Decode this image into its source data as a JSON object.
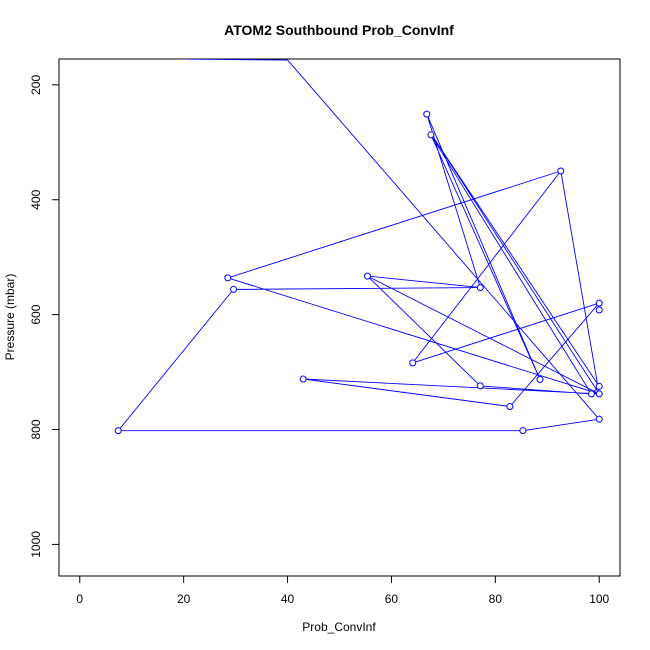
{
  "chart_data": {
    "type": "line",
    "title": "ATOM2 Southbound Prob_ConvInf",
    "xlabel": "Prob_ConvInf",
    "ylabel": "Pressure (mbar)",
    "xlim": [
      -4,
      104
    ],
    "ylim": [
      1055,
      155
    ],
    "y_reversed": true,
    "x_ticks": [
      0,
      20,
      40,
      60,
      80,
      100
    ],
    "y_ticks": [
      200,
      400,
      600,
      800,
      1000
    ],
    "x_tick_labels": [
      "0",
      "20",
      "40",
      "60",
      "80",
      "100"
    ],
    "y_tick_labels": [
      "200",
      "400",
      "600",
      "800",
      "1000"
    ],
    "grid": false,
    "line_color": "#0000ff",
    "series": [
      {
        "points": [
          [
            19.7,
            155
          ],
          [
            40,
            157
          ],
          [
            100,
            782
          ],
          [
            100,
            782
          ],
          [
            85.3,
            802
          ],
          [
            7.4,
            802
          ],
          [
            29.6,
            556
          ],
          [
            77.1,
            553
          ],
          [
            55.4,
            533
          ],
          [
            100,
            738
          ],
          [
            92.6,
            350
          ],
          [
            64.1,
            684
          ],
          [
            100,
            580
          ],
          [
            82.8,
            760
          ],
          [
            43,
            712
          ],
          [
            100,
            738
          ],
          [
            98.5,
            738
          ],
          [
            67.6,
            287
          ],
          [
            88.6,
            713
          ],
          [
            66.8,
            251
          ],
          [
            77.1,
            553
          ],
          [
            55.4,
            533
          ],
          [
            77.1,
            724
          ],
          [
            98.5,
            738
          ],
          [
            100,
            725
          ],
          [
            68.4,
            296
          ],
          [
            100,
            738
          ],
          [
            28.5,
            536
          ],
          [
            92.6,
            350
          ]
        ],
        "markers": [
          [
            66.8,
            251
          ],
          [
            67.6,
            287
          ],
          [
            92.6,
            350
          ],
          [
            28.5,
            536
          ],
          [
            55.4,
            533
          ],
          [
            29.6,
            556
          ],
          [
            77.1,
            553
          ],
          [
            100,
            580
          ],
          [
            100,
            592
          ],
          [
            64.1,
            684
          ],
          [
            43,
            712
          ],
          [
            88.6,
            713
          ],
          [
            77.1,
            724
          ],
          [
            100,
            725
          ],
          [
            98.5,
            738
          ],
          [
            100,
            738
          ],
          [
            82.8,
            760
          ],
          [
            100,
            782
          ],
          [
            7.4,
            802
          ],
          [
            85.3,
            802
          ]
        ]
      }
    ]
  }
}
